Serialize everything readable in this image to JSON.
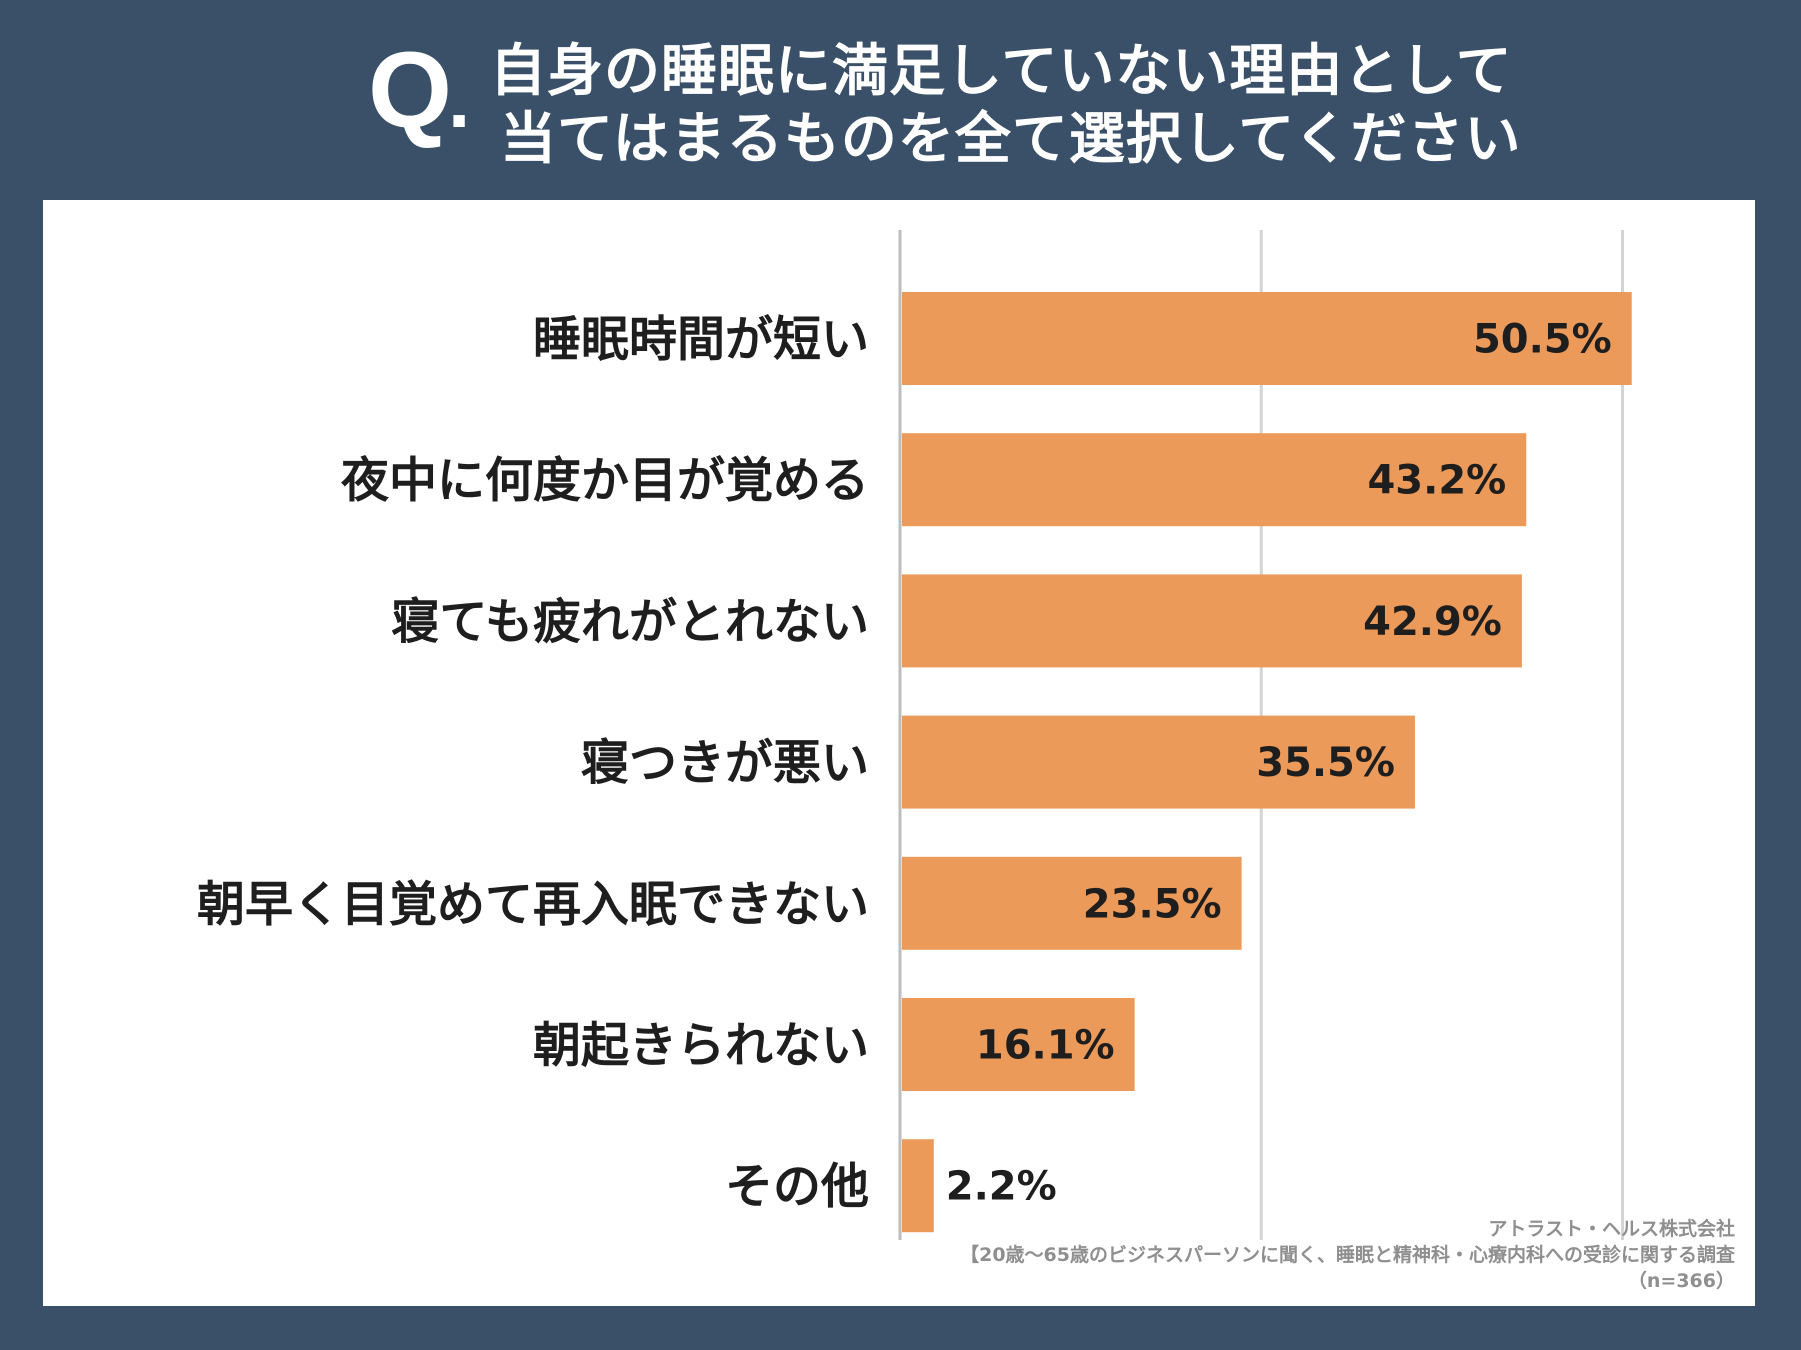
{
  "header": {
    "q_mark": "Q",
    "q_dot": ".",
    "title_line1": "自身の睡眠に満足していない理由として",
    "title_line2": "当てはまるものを全て選択してください"
  },
  "colors": {
    "background": "#3a5068",
    "panel": "#ffffff",
    "bar": "#ec9a5a",
    "gridline": "#d4d4d4",
    "axis": "#bdbdbd",
    "text": "#1e1e1e",
    "source_text": "#8f8f8f"
  },
  "chart_data": {
    "type": "bar",
    "orientation": "horizontal",
    "title": "自身の睡眠に満足していない理由として当てはまるものを全て選択してください",
    "categories": [
      "睡眠時間が短い",
      "夜中に何度か目が覚める",
      "寝ても疲れがとれない",
      "寝つきが悪い",
      "朝早く目覚めて再入眠できない",
      "朝起きられない",
      "その他"
    ],
    "values": [
      50.5,
      43.2,
      42.9,
      35.5,
      23.5,
      16.1,
      2.2
    ],
    "value_labels": [
      "50.5%",
      "43.2%",
      "42.9%",
      "35.5%",
      "23.5%",
      "16.1%",
      "2.2%"
    ],
    "unit": "%",
    "xlim": [
      0,
      50
    ],
    "gridlines": [
      0,
      25,
      50
    ],
    "grid": true,
    "legend": "none",
    "xlabel": "",
    "ylabel": ""
  },
  "source": {
    "company": "アトラスト・ヘルス株式会社",
    "survey": "【20歳～65歳のビジネスパーソンに聞く、睡眠と精神科・心療内科への受診に関する調査",
    "n": "（n=366）"
  }
}
